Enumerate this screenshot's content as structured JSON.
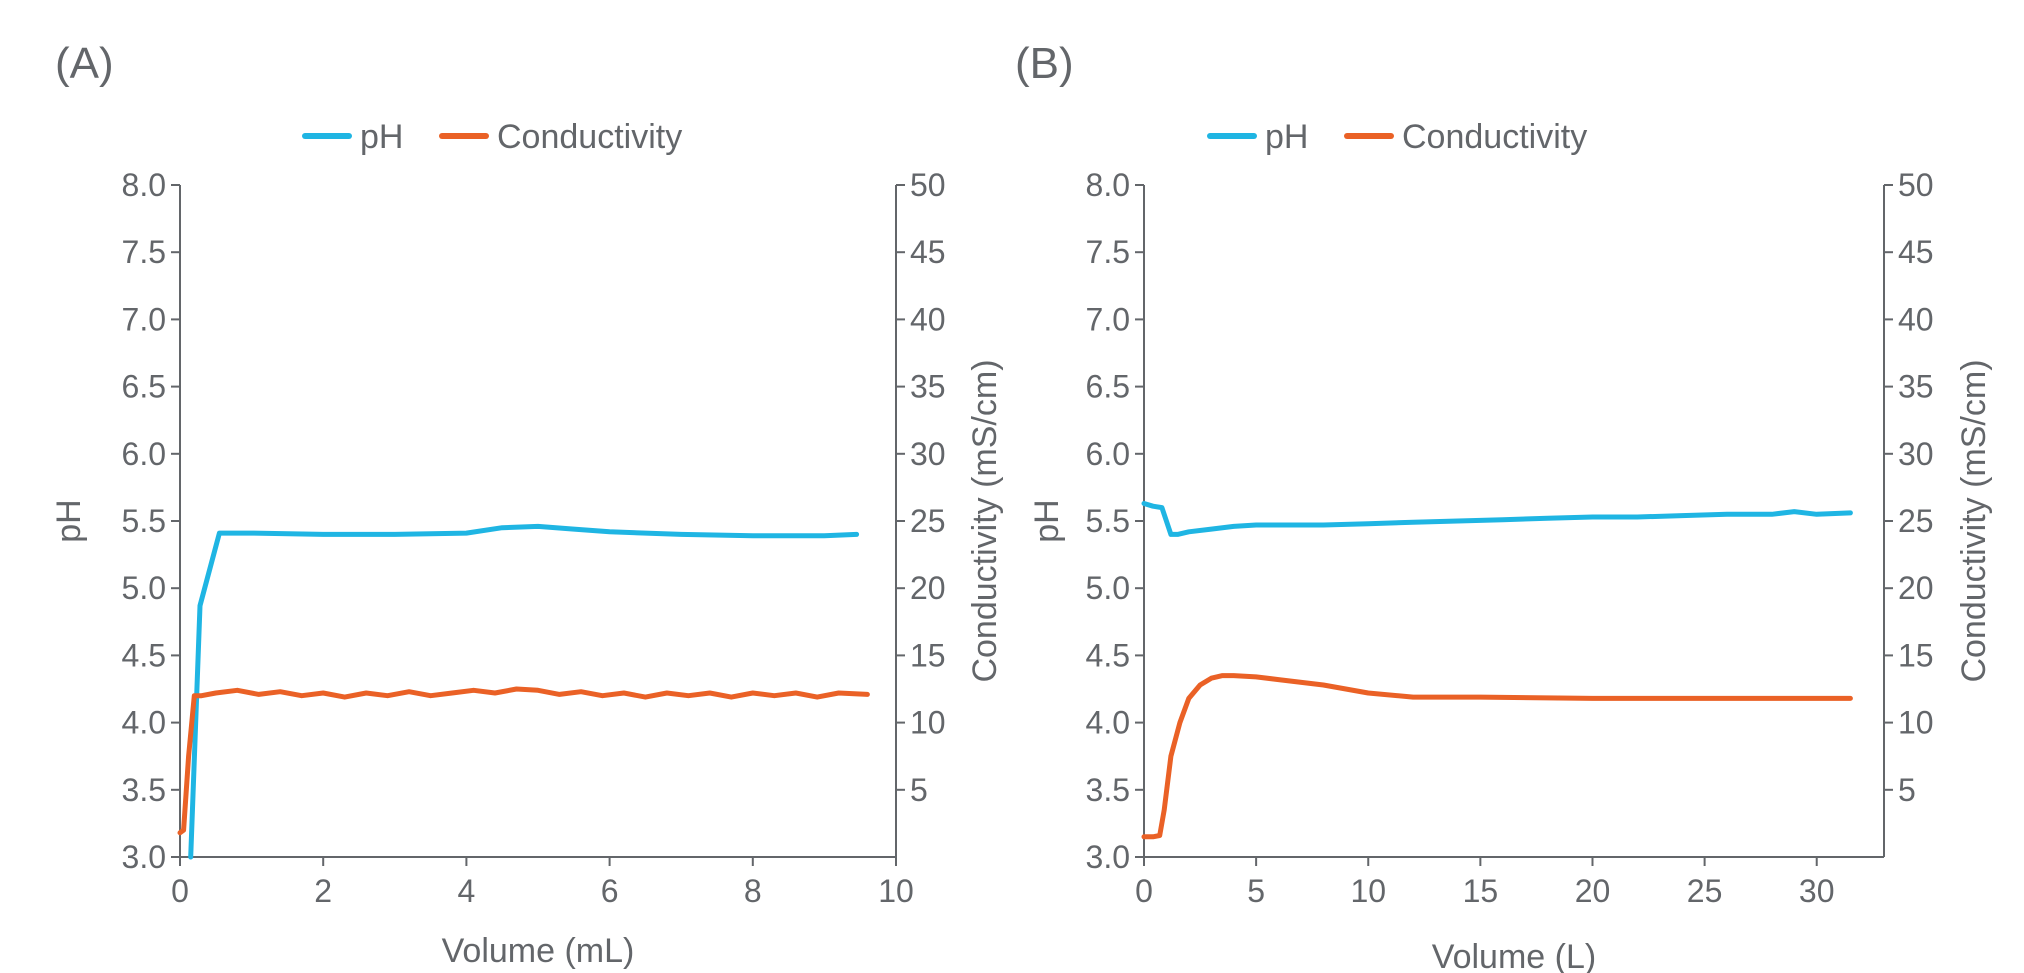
{
  "colors": {
    "ph": "#1fb5e3",
    "conductivity": "#ea6126",
    "axis": "#63666a",
    "text": "#63666a"
  },
  "chart_data": [
    {
      "panel_label": "(A)",
      "type": "line",
      "xlabel": "Volume (mL)",
      "ylabel": "pH",
      "y2label": "Conductivity (mS/cm)",
      "xlim": [
        0,
        10
      ],
      "ylim": [
        3.0,
        8.0
      ],
      "y2lim": [
        0,
        50
      ],
      "xticks": [
        "0",
        "2",
        "4",
        "6",
        "8",
        "10"
      ],
      "xtick_values": [
        0,
        2,
        4,
        6,
        8,
        10
      ],
      "yticks": [
        "3.0",
        "3.5",
        "4.0",
        "4.5",
        "5.0",
        "5.5",
        "6.0",
        "6.5",
        "7.0",
        "7.5",
        "8.0"
      ],
      "ytick_values": [
        3.0,
        3.5,
        4.0,
        4.5,
        5.0,
        5.5,
        6.0,
        6.5,
        7.0,
        7.5,
        8.0
      ],
      "y2ticks": [
        "5",
        "10",
        "15",
        "20",
        "25",
        "30",
        "35",
        "40",
        "45",
        "50"
      ],
      "y2tick_values": [
        5,
        10,
        15,
        20,
        25,
        30,
        35,
        40,
        45,
        50
      ],
      "grid": false,
      "legend": "top-center",
      "series": [
        {
          "name": "pH",
          "axis": "left",
          "x": [
            0.15,
            0.28,
            0.55,
            1.0,
            2.0,
            3.0,
            4.0,
            4.5,
            5.0,
            5.5,
            6.0,
            7.0,
            8.0,
            9.0,
            9.45
          ],
          "y": [
            3.0,
            4.87,
            5.41,
            5.41,
            5.4,
            5.4,
            5.41,
            5.45,
            5.46,
            5.44,
            5.42,
            5.4,
            5.39,
            5.39,
            5.4
          ]
        },
        {
          "name": "Conductivity",
          "axis": "right",
          "x": [
            0.0,
            0.05,
            0.12,
            0.2,
            0.3,
            0.5,
            0.8,
            1.1,
            1.4,
            1.7,
            2.0,
            2.3,
            2.6,
            2.9,
            3.2,
            3.5,
            3.8,
            4.1,
            4.4,
            4.7,
            5.0,
            5.3,
            5.6,
            5.9,
            6.2,
            6.5,
            6.8,
            7.1,
            7.4,
            7.7,
            8.0,
            8.3,
            8.6,
            8.9,
            9.2,
            9.6
          ],
          "y": [
            1.8,
            2.0,
            7.5,
            12.0,
            12.0,
            12.2,
            12.4,
            12.1,
            12.3,
            12.0,
            12.2,
            11.9,
            12.2,
            12.0,
            12.3,
            12.0,
            12.2,
            12.4,
            12.2,
            12.5,
            12.4,
            12.1,
            12.3,
            12.0,
            12.2,
            11.9,
            12.2,
            12.0,
            12.2,
            11.9,
            12.2,
            12.0,
            12.2,
            11.9,
            12.2,
            12.1
          ]
        }
      ]
    },
    {
      "panel_label": "(B)",
      "type": "line",
      "xlabel": "Volume (L)",
      "ylabel": "pH",
      "y2label": "Conductivity (mS/cm)",
      "xlim": [
        0,
        33
      ],
      "ylim": [
        3.0,
        8.0
      ],
      "y2lim": [
        0,
        50
      ],
      "xticks": [
        "0",
        "5",
        "10",
        "15",
        "20",
        "25",
        "30"
      ],
      "xtick_values": [
        0,
        5,
        10,
        15,
        20,
        25,
        30
      ],
      "yticks": [
        "3.0",
        "3.5",
        "4.0",
        "4.5",
        "5.0",
        "5.5",
        "6.0",
        "6.5",
        "7.0",
        "7.5",
        "8.0"
      ],
      "ytick_values": [
        3.0,
        3.5,
        4.0,
        4.5,
        5.0,
        5.5,
        6.0,
        6.5,
        7.0,
        7.5,
        8.0
      ],
      "y2ticks": [
        "5",
        "10",
        "15",
        "20",
        "25",
        "30",
        "35",
        "40",
        "45",
        "50"
      ],
      "y2tick_values": [
        5,
        10,
        15,
        20,
        25,
        30,
        35,
        40,
        45,
        50
      ],
      "grid": false,
      "legend": "top-center",
      "series": [
        {
          "name": "pH",
          "axis": "left",
          "x": [
            0.0,
            0.4,
            0.8,
            1.0,
            1.2,
            1.5,
            2.0,
            3.0,
            4.0,
            5.0,
            6.0,
            8.0,
            10.0,
            12.0,
            14.0,
            16.0,
            18.0,
            20.0,
            22.0,
            24.0,
            26.0,
            28.0,
            29.0,
            30.0,
            31.5
          ],
          "y": [
            5.63,
            5.61,
            5.6,
            5.5,
            5.4,
            5.4,
            5.42,
            5.44,
            5.46,
            5.47,
            5.47,
            5.47,
            5.48,
            5.49,
            5.5,
            5.51,
            5.52,
            5.53,
            5.53,
            5.54,
            5.55,
            5.55,
            5.57,
            5.55,
            5.56
          ]
        },
        {
          "name": "Conductivity",
          "axis": "right",
          "x": [
            0.0,
            0.4,
            0.7,
            0.9,
            1.2,
            1.6,
            2.0,
            2.5,
            3.0,
            3.5,
            4.0,
            5.0,
            6.0,
            8.0,
            10.0,
            12.0,
            15.0,
            20.0,
            25.0,
            28.0,
            31.5
          ],
          "y": [
            1.5,
            1.5,
            1.6,
            3.5,
            7.5,
            10.0,
            11.8,
            12.8,
            13.3,
            13.5,
            13.5,
            13.4,
            13.2,
            12.8,
            12.2,
            11.9,
            11.9,
            11.8,
            11.8,
            11.8,
            11.8
          ]
        }
      ]
    }
  ]
}
